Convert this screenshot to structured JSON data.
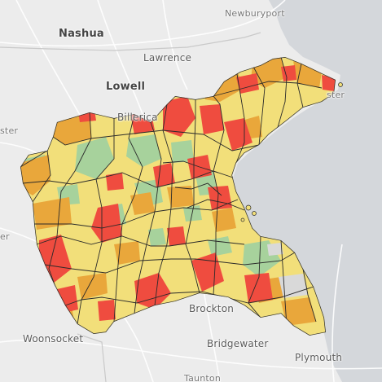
{
  "map": {
    "colors": {
      "land": "#ececec",
      "water": "#d4d7db",
      "roads": "#ffffff",
      "boundary": "#2a2a2a",
      "class_red": "#ef4c3f",
      "class_orange": "#e9a73b",
      "class_yellow": "#f2df7a",
      "class_green": "#a7d29c",
      "class_gray": "#d9d9d9"
    },
    "place_labels": {
      "nashua": "Nashua",
      "newburyport": "Newburyport",
      "lawrence": "Lawrence",
      "lowell": "Lowell",
      "billerica": "Billerica",
      "worcester_fragment": "ster",
      "leominster_fragment": "er",
      "ster_coast": "ster",
      "brockton": "Brockton",
      "woonsocket": "Woonsocket",
      "bridgewater": "Bridgewater",
      "plymouth": "Plymouth",
      "taunton": "Taunton"
    }
  }
}
